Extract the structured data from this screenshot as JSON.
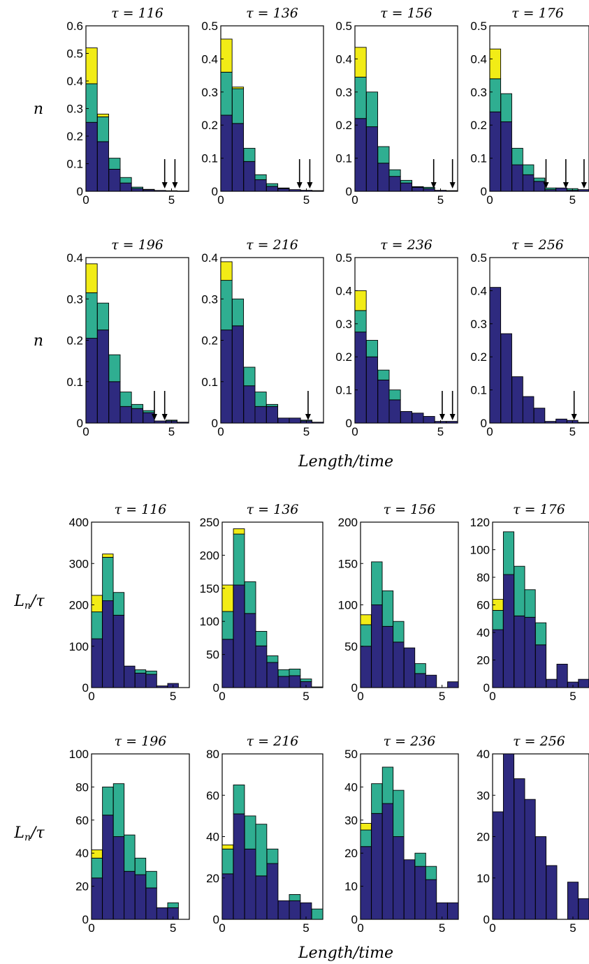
{
  "figure": {
    "row_labels": [
      "n",
      "n",
      "Ln/τ",
      "Ln/τ"
    ],
    "xlabels": [
      "Length/time",
      "Length/time"
    ]
  },
  "chart_data": [
    {
      "type": "bar",
      "title": "τ = 116",
      "ylabel": "n",
      "ylim": [
        0,
        0.6
      ],
      "yticks": [
        0,
        0.1,
        0.2,
        0.3,
        0.4,
        0.5,
        0.6
      ],
      "xlim": [
        0,
        6
      ],
      "xticks": [
        0,
        5
      ],
      "x": [
        0.33,
        1.0,
        1.67,
        2.33,
        3.0,
        3.67,
        4.33,
        5.0,
        5.67
      ],
      "series": [
        {
          "values": [
            0.25,
            0.18,
            0.08,
            0.03,
            0.01,
            0.005,
            0.003,
            0.002,
            0.001
          ]
        },
        {
          "values": [
            0.14,
            0.09,
            0.04,
            0.02,
            0.005,
            0.002,
            0,
            0,
            0
          ]
        },
        {
          "values": [
            0.13,
            0.01,
            0,
            0,
            0,
            0,
            0,
            0,
            0
          ]
        }
      ],
      "arrows_at": [
        4.6,
        5.2
      ],
      "colors": [
        "#2e2a7f",
        "#2fae91",
        "#f2ec16"
      ]
    },
    {
      "type": "bar",
      "title": "τ = 136",
      "ylabel": "",
      "ylim": [
        0,
        0.5
      ],
      "yticks": [
        0,
        0.1,
        0.2,
        0.3,
        0.4,
        0.5
      ],
      "xlim": [
        0,
        6
      ],
      "xticks": [
        0,
        5
      ],
      "x": [
        0.33,
        1.0,
        1.67,
        2.33,
        3.0,
        3.67,
        4.33,
        5.0,
        5.67
      ],
      "series": [
        {
          "values": [
            0.23,
            0.205,
            0.09,
            0.035,
            0.015,
            0.008,
            0.005,
            0.003,
            0.002
          ]
        },
        {
          "values": [
            0.13,
            0.105,
            0.04,
            0.015,
            0.008,
            0.002,
            0,
            0,
            0
          ]
        },
        {
          "values": [
            0.1,
            0.005,
            0,
            0,
            0,
            0,
            0,
            0,
            0
          ]
        }
      ],
      "arrows_at": [
        4.6,
        5.2
      ],
      "colors": [
        "#2e2a7f",
        "#2fae91",
        "#f2ec16"
      ]
    },
    {
      "type": "bar",
      "title": "τ = 156",
      "ylabel": "",
      "ylim": [
        0,
        0.5
      ],
      "yticks": [
        0,
        0.1,
        0.2,
        0.3,
        0.4,
        0.5
      ],
      "xlim": [
        0,
        6
      ],
      "xticks": [
        0,
        5
      ],
      "x": [
        0.33,
        1.0,
        1.67,
        2.33,
        3.0,
        3.67,
        4.33,
        5.0,
        5.67
      ],
      "series": [
        {
          "values": [
            0.22,
            0.195,
            0.085,
            0.045,
            0.025,
            0.012,
            0.008,
            0.003,
            0.002
          ]
        },
        {
          "values": [
            0.125,
            0.105,
            0.05,
            0.02,
            0.008,
            0.002,
            0.004,
            0,
            0
          ]
        },
        {
          "values": [
            0.09,
            0,
            0,
            0,
            0,
            0,
            0,
            0,
            0
          ]
        }
      ],
      "arrows_at": [
        4.6,
        5.7
      ],
      "colors": [
        "#2e2a7f",
        "#2fae91",
        "#f2ec16"
      ]
    },
    {
      "type": "bar",
      "title": "τ = 176",
      "ylabel": "",
      "ylim": [
        0,
        0.5
      ],
      "yticks": [
        0,
        0.1,
        0.2,
        0.3,
        0.4,
        0.5
      ],
      "xlim": [
        0,
        6
      ],
      "xticks": [
        0,
        5
      ],
      "x": [
        0.33,
        1.0,
        1.67,
        2.33,
        3.0,
        3.67,
        4.33,
        5.0,
        5.67
      ],
      "series": [
        {
          "values": [
            0.24,
            0.21,
            0.08,
            0.05,
            0.03,
            0.005,
            0.01,
            0.003,
            0.005
          ]
        },
        {
          "values": [
            0.1,
            0.085,
            0.05,
            0.03,
            0.01,
            0.005,
            0,
            0.005,
            0
          ]
        },
        {
          "values": [
            0.09,
            0,
            0,
            0,
            0,
            0,
            0,
            0,
            0
          ]
        }
      ],
      "arrows_at": [
        3.4,
        4.6,
        5.7
      ],
      "colors": [
        "#2e2a7f",
        "#2fae91",
        "#f2ec16"
      ]
    },
    {
      "type": "bar",
      "title": "τ = 196",
      "ylabel": "n",
      "ylim": [
        0,
        0.4
      ],
      "yticks": [
        0,
        0.1,
        0.2,
        0.3,
        0.4
      ],
      "xlim": [
        0,
        6
      ],
      "xticks": [
        0,
        5
      ],
      "x": [
        0.33,
        1.0,
        1.67,
        2.33,
        3.0,
        3.67,
        4.33,
        5.0,
        5.67
      ],
      "series": [
        {
          "values": [
            0.205,
            0.225,
            0.1,
            0.04,
            0.035,
            0.025,
            0.005,
            0.005,
            0.002
          ]
        },
        {
          "values": [
            0.11,
            0.065,
            0.065,
            0.035,
            0.01,
            0.005,
            0,
            0.002,
            0
          ]
        },
        {
          "values": [
            0.07,
            0,
            0,
            0,
            0,
            0,
            0,
            0,
            0
          ]
        }
      ],
      "arrows_at": [
        4.0,
        4.6
      ],
      "colors": [
        "#2e2a7f",
        "#2fae91",
        "#f2ec16"
      ]
    },
    {
      "type": "bar",
      "title": "τ = 216",
      "ylabel": "",
      "ylim": [
        0,
        0.4
      ],
      "yticks": [
        0,
        0.1,
        0.2,
        0.3,
        0.4
      ],
      "xlim": [
        0,
        6
      ],
      "xticks": [
        0,
        5
      ],
      "x": [
        0.33,
        1.0,
        1.67,
        2.33,
        3.0,
        3.67,
        4.33,
        5.0,
        5.67
      ],
      "series": [
        {
          "values": [
            0.225,
            0.235,
            0.09,
            0.04,
            0.04,
            0.012,
            0.012,
            0.005,
            0.002
          ]
        },
        {
          "values": [
            0.12,
            0.065,
            0.045,
            0.035,
            0.005,
            0,
            0,
            0.002,
            0
          ]
        },
        {
          "values": [
            0.045,
            0,
            0,
            0,
            0,
            0,
            0,
            0,
            0
          ]
        }
      ],
      "arrows_at": [
        5.1
      ],
      "colors": [
        "#2e2a7f",
        "#2fae91",
        "#f2ec16"
      ]
    },
    {
      "type": "bar",
      "title": "τ = 236",
      "ylabel": "",
      "ylim": [
        0,
        0.5
      ],
      "yticks": [
        0,
        0.1,
        0.2,
        0.3,
        0.4,
        0.5
      ],
      "xlim": [
        0,
        6
      ],
      "xticks": [
        0,
        5
      ],
      "x": [
        0.33,
        1.0,
        1.67,
        2.33,
        3.0,
        3.67,
        4.33,
        5.0,
        5.67
      ],
      "series": [
        {
          "values": [
            0.275,
            0.2,
            0.13,
            0.07,
            0.035,
            0.03,
            0.02,
            0.005,
            0.005
          ]
        },
        {
          "values": [
            0.065,
            0.05,
            0.03,
            0.03,
            0,
            0,
            0,
            0,
            0
          ]
        },
        {
          "values": [
            0.06,
            0,
            0,
            0,
            0,
            0,
            0,
            0,
            0
          ]
        }
      ],
      "arrows_at": [
        5.1,
        5.7
      ],
      "colors": [
        "#2e2a7f",
        "#2fae91",
        "#f2ec16"
      ]
    },
    {
      "type": "bar",
      "title": "τ = 256",
      "ylabel": "",
      "ylim": [
        0,
        0.5
      ],
      "yticks": [
        0,
        0.1,
        0.2,
        0.3,
        0.4,
        0.5
      ],
      "xlim": [
        0,
        6
      ],
      "xticks": [
        0,
        5
      ],
      "x": [
        0.33,
        1.0,
        1.67,
        2.33,
        3.0,
        3.67,
        4.33,
        5.0,
        5.67
      ],
      "series": [
        {
          "values": [
            0.41,
            0.27,
            0.14,
            0.08,
            0.045,
            0.005,
            0.012,
            0.008,
            0.002
          ]
        }
      ],
      "arrows_at": [
        5.1
      ],
      "colors": [
        "#2e2a7f",
        "#2fae91",
        "#f2ec16"
      ]
    },
    {
      "type": "bar",
      "title": "τ = 116",
      "ylabel": "Ln/τ",
      "ylim": [
        0,
        400
      ],
      "yticks": [
        0,
        100,
        200,
        300,
        400
      ],
      "xlim": [
        0,
        6
      ],
      "xticks": [
        0,
        5
      ],
      "x": [
        0.33,
        1.0,
        1.67,
        2.33,
        3.0,
        3.67,
        4.33,
        5.0,
        5.67
      ],
      "series": [
        {
          "values": [
            118,
            210,
            175,
            52,
            35,
            32,
            4,
            10,
            0
          ]
        },
        {
          "values": [
            65,
            105,
            55,
            0,
            8,
            8,
            0,
            0,
            0
          ]
        },
        {
          "values": [
            40,
            8,
            0,
            0,
            0,
            0,
            0,
            0,
            0
          ]
        }
      ],
      "colors": [
        "#2e2a7f",
        "#2fae91",
        "#f2ec16"
      ]
    },
    {
      "type": "bar",
      "title": "τ = 136",
      "ylabel": "",
      "ylim": [
        0,
        250
      ],
      "yticks": [
        0,
        50,
        100,
        150,
        200,
        250
      ],
      "xlim": [
        0,
        6
      ],
      "xticks": [
        0,
        5
      ],
      "x": [
        0.33,
        1.0,
        1.67,
        2.33,
        3.0,
        3.67,
        4.33,
        5.0,
        5.67
      ],
      "series": [
        {
          "values": [
            73,
            155,
            112,
            63,
            38,
            17,
            18,
            9,
            0
          ]
        },
        {
          "values": [
            42,
            77,
            48,
            22,
            10,
            10,
            10,
            4,
            1
          ]
        },
        {
          "values": [
            40,
            8,
            0,
            0,
            0,
            0,
            0,
            0,
            0
          ]
        }
      ],
      "colors": [
        "#2e2a7f",
        "#2fae91",
        "#f2ec16"
      ]
    },
    {
      "type": "bar",
      "title": "τ = 156",
      "ylabel": "",
      "ylim": [
        0,
        200
      ],
      "yticks": [
        0,
        50,
        100,
        150,
        200
      ],
      "xlim": [
        0,
        6
      ],
      "xticks": [
        0,
        5
      ],
      "x": [
        0.33,
        1.0,
        1.67,
        2.33,
        3.0,
        3.67,
        4.33,
        5.0,
        5.67
      ],
      "series": [
        {
          "values": [
            50,
            100,
            74,
            55,
            48,
            17,
            15,
            0,
            7
          ]
        },
        {
          "values": [
            26,
            52,
            43,
            25,
            0,
            12,
            0,
            0,
            0
          ]
        },
        {
          "values": [
            12,
            0,
            0,
            0,
            0,
            0,
            0,
            0,
            0
          ]
        }
      ],
      "colors": [
        "#2e2a7f",
        "#2fae91",
        "#f2ec16"
      ]
    },
    {
      "type": "bar",
      "title": "τ = 176",
      "ylabel": "",
      "ylim": [
        0,
        120
      ],
      "yticks": [
        0,
        20,
        40,
        60,
        80,
        100,
        120
      ],
      "xlim": [
        0,
        6
      ],
      "xticks": [
        0,
        5
      ],
      "x": [
        0.33,
        1.0,
        1.67,
        2.33,
        3.0,
        3.67,
        4.33,
        5.0,
        5.67
      ],
      "series": [
        {
          "values": [
            42,
            82,
            52,
            51,
            31,
            6,
            17,
            4,
            6
          ]
        },
        {
          "values": [
            14,
            31,
            36,
            20,
            16,
            0,
            0,
            0,
            0
          ]
        },
        {
          "values": [
            8,
            0,
            0,
            0,
            0,
            0,
            0,
            0,
            0
          ]
        }
      ],
      "colors": [
        "#2e2a7f",
        "#2fae91",
        "#f2ec16"
      ]
    },
    {
      "type": "bar",
      "title": "τ = 196",
      "ylabel": "Ln/τ",
      "ylim": [
        0,
        100
      ],
      "yticks": [
        0,
        20,
        40,
        60,
        80,
        100
      ],
      "xlim": [
        0,
        6
      ],
      "xticks": [
        0,
        5
      ],
      "x": [
        0.33,
        1.0,
        1.67,
        2.33,
        3.0,
        3.67,
        4.33,
        5.0,
        5.67
      ],
      "series": [
        {
          "values": [
            25,
            63,
            50,
            29,
            27,
            19,
            7,
            7,
            0
          ]
        },
        {
          "values": [
            12,
            17,
            32,
            22,
            10,
            10,
            0,
            3,
            0
          ]
        },
        {
          "values": [
            5,
            0,
            0,
            0,
            0,
            0,
            0,
            0,
            0
          ]
        }
      ],
      "colors": [
        "#2e2a7f",
        "#2fae91",
        "#f2ec16"
      ]
    },
    {
      "type": "bar",
      "title": "τ = 216",
      "ylabel": "",
      "ylim": [
        0,
        80
      ],
      "yticks": [
        0,
        20,
        40,
        60,
        80
      ],
      "xlim": [
        0,
        6
      ],
      "xticks": [
        0,
        5
      ],
      "x": [
        0.33,
        1.0,
        1.67,
        2.33,
        3.0,
        3.67,
        4.33,
        5.0,
        5.67
      ],
      "series": [
        {
          "values": [
            22,
            51,
            34,
            21,
            27,
            9,
            9,
            8,
            0
          ]
        },
        {
          "values": [
            12,
            14,
            16,
            25,
            7,
            0,
            3,
            0,
            5
          ]
        },
        {
          "values": [
            2,
            0,
            0,
            0,
            0,
            0,
            0,
            0,
            0
          ]
        }
      ],
      "colors": [
        "#2e2a7f",
        "#2fae91",
        "#f2ec16"
      ]
    },
    {
      "type": "bar",
      "title": "τ = 236",
      "ylabel": "",
      "ylim": [
        0,
        50
      ],
      "yticks": [
        0,
        10,
        20,
        30,
        40,
        50
      ],
      "xlim": [
        0,
        6
      ],
      "xticks": [
        0,
        5
      ],
      "x": [
        0.33,
        1.0,
        1.67,
        2.33,
        3.0,
        3.67,
        4.33,
        5.0,
        5.67
      ],
      "series": [
        {
          "values": [
            22,
            32,
            35,
            25,
            18,
            16,
            12,
            5,
            5
          ]
        },
        {
          "values": [
            5,
            9,
            11,
            14,
            0,
            4,
            4,
            0,
            0
          ]
        },
        {
          "values": [
            2,
            0,
            0,
            0,
            0,
            0,
            0,
            0,
            0
          ]
        }
      ],
      "colors": [
        "#2e2a7f",
        "#2fae91",
        "#f2ec16"
      ]
    },
    {
      "type": "bar",
      "title": "τ = 256",
      "ylabel": "",
      "ylim": [
        0,
        40
      ],
      "yticks": [
        0,
        10,
        20,
        30,
        40
      ],
      "xlim": [
        0,
        6
      ],
      "xticks": [
        0,
        5
      ],
      "x": [
        0.33,
        1.0,
        1.67,
        2.33,
        3.0,
        3.67,
        4.33,
        5.0,
        5.67
      ],
      "series": [
        {
          "values": [
            26,
            40,
            34,
            29,
            20,
            13,
            0,
            9,
            5
          ]
        }
      ],
      "colors": [
        "#2e2a7f",
        "#2fae91",
        "#f2ec16"
      ]
    }
  ]
}
